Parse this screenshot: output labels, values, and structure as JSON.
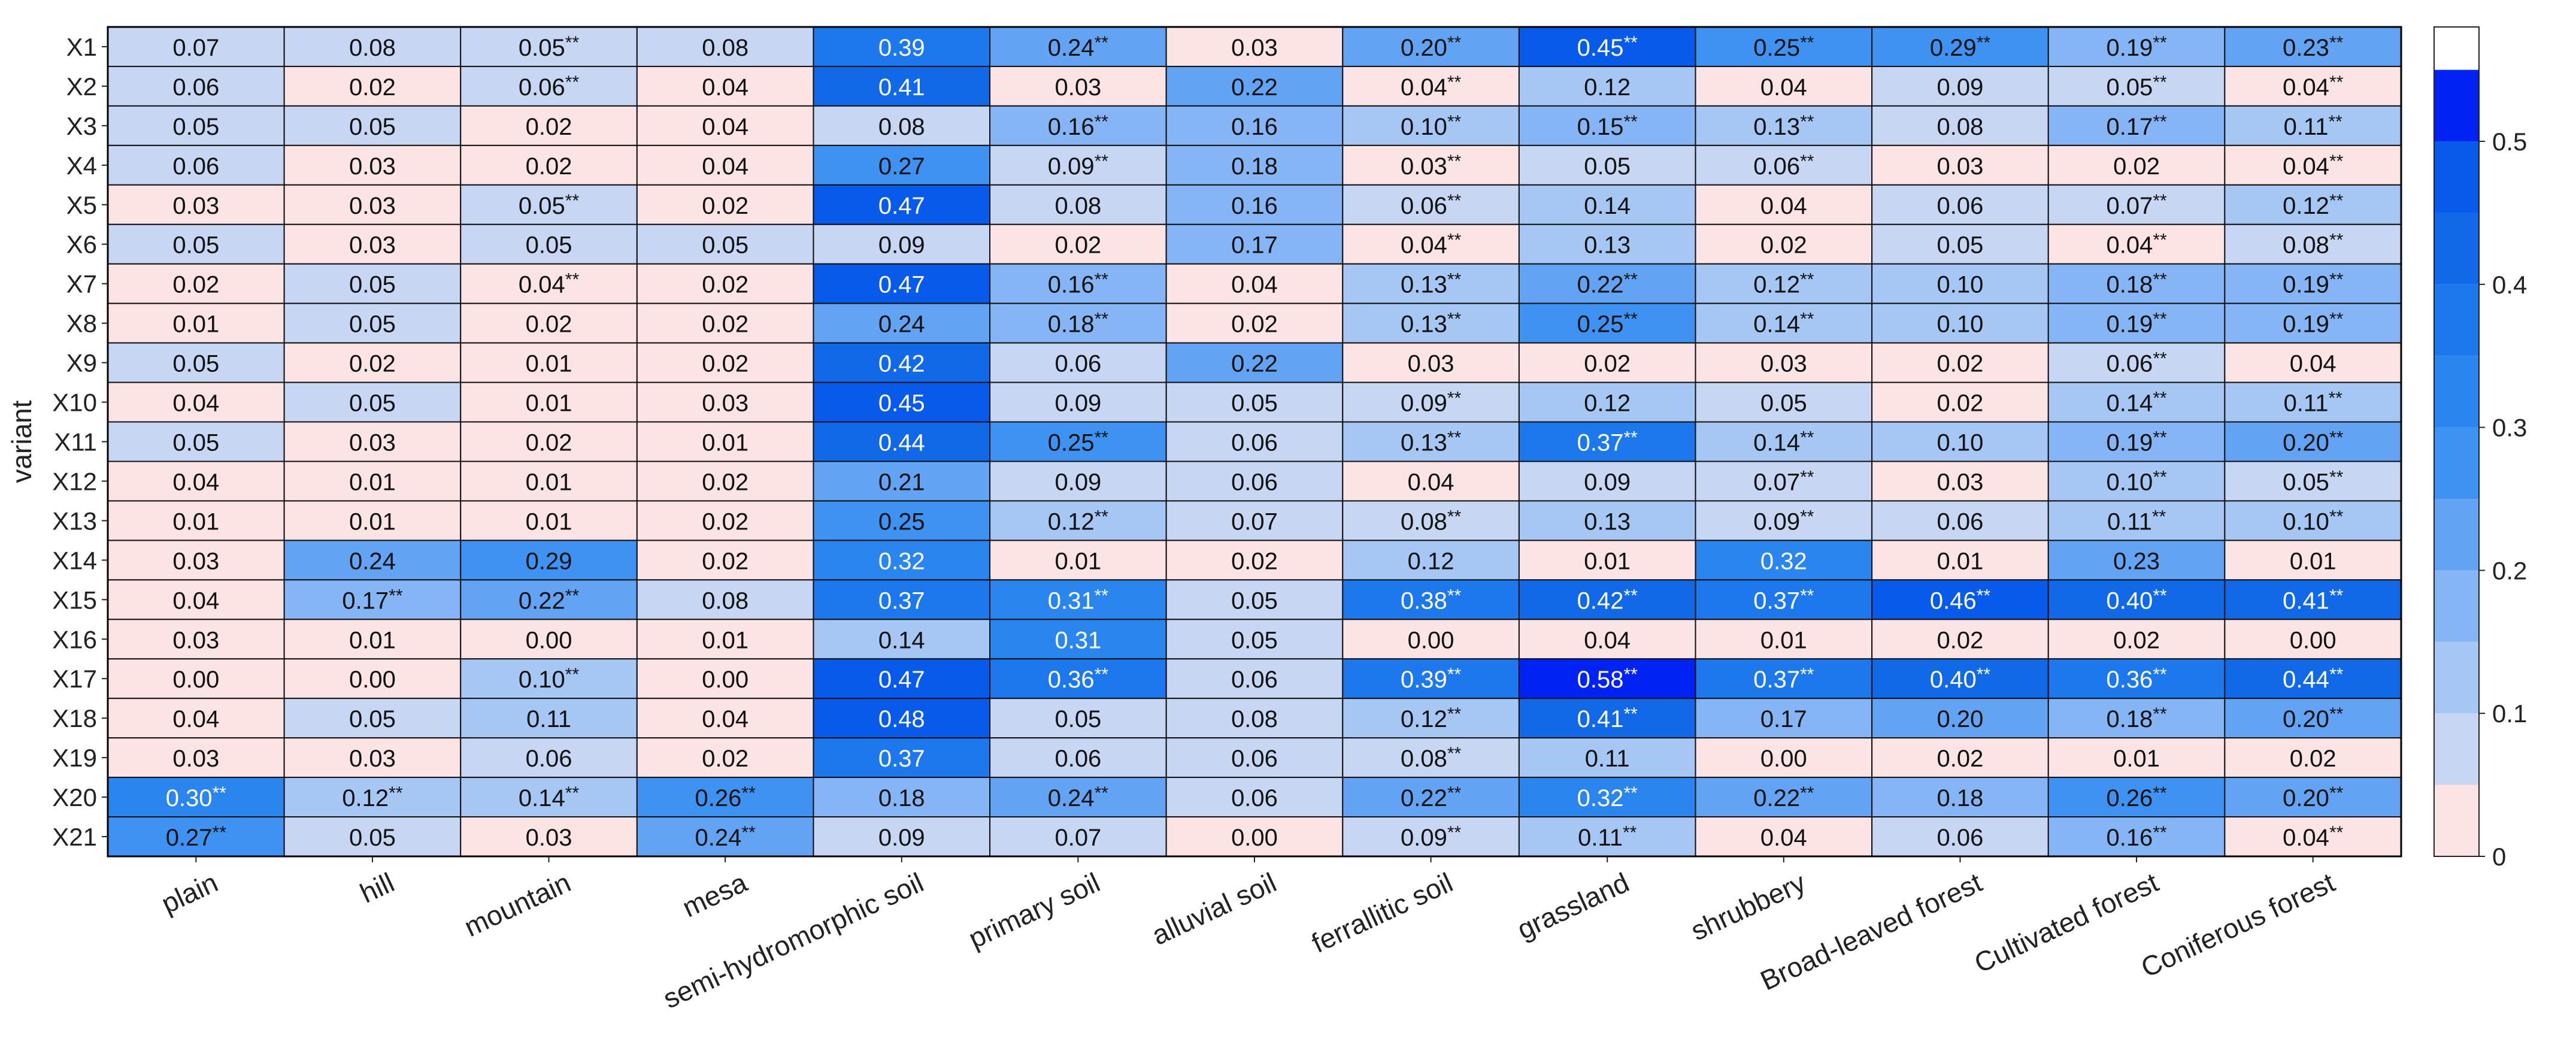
{
  "chart_data": {
    "type": "heatmap",
    "title": "",
    "xlabel": "",
    "ylabel": "variant",
    "rows": [
      "X1",
      "X2",
      "X3",
      "X4",
      "X5",
      "X6",
      "X7",
      "X8",
      "X9",
      "X10",
      "X11",
      "X12",
      "X13",
      "X14",
      "X15",
      "X16",
      "X17",
      "X18",
      "X19",
      "X20",
      "X21"
    ],
    "columns": [
      "plain",
      "hill",
      "mountain",
      "mesa",
      "semi-hydromorphic soil",
      "primary soil",
      "alluvial soil",
      "ferrallitic soil",
      "grassland",
      "shrubbery",
      "Broad-leaved forest",
      "Cultivated forest",
      "Coniferous forest"
    ],
    "values": [
      [
        0.07,
        0.08,
        0.05,
        0.08,
        0.39,
        0.24,
        0.03,
        0.2,
        0.45,
        0.25,
        0.29,
        0.19,
        0.23
      ],
      [
        0.06,
        0.02,
        0.06,
        0.04,
        0.41,
        0.03,
        0.22,
        0.04,
        0.12,
        0.04,
        0.09,
        0.05,
        0.04
      ],
      [
        0.05,
        0.05,
        0.02,
        0.04,
        0.08,
        0.16,
        0.16,
        0.1,
        0.15,
        0.13,
        0.08,
        0.17,
        0.11
      ],
      [
        0.06,
        0.03,
        0.02,
        0.04,
        0.27,
        0.09,
        0.18,
        0.03,
        0.05,
        0.06,
        0.03,
        0.02,
        0.04
      ],
      [
        0.03,
        0.03,
        0.05,
        0.02,
        0.47,
        0.08,
        0.16,
        0.06,
        0.14,
        0.04,
        0.06,
        0.07,
        0.12
      ],
      [
        0.05,
        0.03,
        0.05,
        0.05,
        0.09,
        0.02,
        0.17,
        0.04,
        0.13,
        0.02,
        0.05,
        0.04,
        0.08
      ],
      [
        0.02,
        0.05,
        0.04,
        0.02,
        0.47,
        0.16,
        0.04,
        0.13,
        0.22,
        0.12,
        0.1,
        0.18,
        0.19
      ],
      [
        0.01,
        0.05,
        0.02,
        0.02,
        0.24,
        0.18,
        0.02,
        0.13,
        0.25,
        0.14,
        0.1,
        0.19,
        0.19
      ],
      [
        0.05,
        0.02,
        0.01,
        0.02,
        0.42,
        0.06,
        0.22,
        0.03,
        0.02,
        0.03,
        0.02,
        0.06,
        0.04
      ],
      [
        0.04,
        0.05,
        0.01,
        0.03,
        0.45,
        0.09,
        0.05,
        0.09,
        0.12,
        0.05,
        0.02,
        0.14,
        0.11
      ],
      [
        0.05,
        0.03,
        0.02,
        0.01,
        0.44,
        0.25,
        0.06,
        0.13,
        0.37,
        0.14,
        0.1,
        0.19,
        0.2
      ],
      [
        0.04,
        0.01,
        0.01,
        0.02,
        0.21,
        0.09,
        0.06,
        0.04,
        0.09,
        0.07,
        0.03,
        0.1,
        0.05
      ],
      [
        0.01,
        0.01,
        0.01,
        0.02,
        0.25,
        0.12,
        0.07,
        0.08,
        0.13,
        0.09,
        0.06,
        0.11,
        0.1
      ],
      [
        0.03,
        0.24,
        0.29,
        0.02,
        0.32,
        0.01,
        0.02,
        0.12,
        0.01,
        0.32,
        0.01,
        0.23,
        0.01
      ],
      [
        0.04,
        0.17,
        0.22,
        0.08,
        0.37,
        0.31,
        0.05,
        0.38,
        0.42,
        0.37,
        0.46,
        0.4,
        0.41
      ],
      [
        0.03,
        0.01,
        0.0,
        0.01,
        0.14,
        0.31,
        0.05,
        0.0,
        0.04,
        0.01,
        0.02,
        0.02,
        0.0
      ],
      [
        0.0,
        0.0,
        0.1,
        0.0,
        0.47,
        0.36,
        0.06,
        0.39,
        0.58,
        0.37,
        0.4,
        0.36,
        0.44
      ],
      [
        0.04,
        0.05,
        0.11,
        0.04,
        0.48,
        0.05,
        0.08,
        0.12,
        0.41,
        0.17,
        0.2,
        0.18,
        0.2
      ],
      [
        0.03,
        0.03,
        0.06,
        0.02,
        0.37,
        0.06,
        0.06,
        0.08,
        0.11,
        0.0,
        0.02,
        0.01,
        0.02
      ],
      [
        0.3,
        0.12,
        0.14,
        0.26,
        0.18,
        0.24,
        0.06,
        0.22,
        0.32,
        0.22,
        0.18,
        0.26,
        0.2
      ],
      [
        0.27,
        0.05,
        0.03,
        0.24,
        0.09,
        0.07,
        0.0,
        0.09,
        0.11,
        0.04,
        0.06,
        0.16,
        0.04
      ]
    ],
    "significance": [
      [
        "",
        "",
        "**",
        "",
        "",
        "**",
        "",
        "**",
        "**",
        "**",
        "**",
        "**",
        "**"
      ],
      [
        "",
        "",
        "**",
        "",
        "",
        "",
        "",
        "**",
        "",
        "",
        "",
        "**",
        "**"
      ],
      [
        "",
        "",
        "",
        "",
        "",
        "**",
        "",
        "**",
        "**",
        "**",
        "",
        "**",
        "**"
      ],
      [
        "",
        "",
        "",
        "",
        "",
        "**",
        "",
        "**",
        "",
        "**",
        "",
        "",
        "**"
      ],
      [
        "",
        "",
        "**",
        "",
        "",
        "",
        "",
        "**",
        "",
        "",
        "",
        "**",
        "**"
      ],
      [
        "",
        "",
        "",
        "",
        "",
        "",
        "",
        "**",
        "",
        "",
        "",
        "**",
        "**"
      ],
      [
        "",
        "",
        "**",
        "",
        "",
        "**",
        "",
        "**",
        "**",
        "**",
        "",
        "**",
        "**"
      ],
      [
        "",
        "",
        "",
        "",
        "",
        "**",
        "",
        "**",
        "**",
        "**",
        "",
        "**",
        "**"
      ],
      [
        "",
        "",
        "",
        "",
        "",
        "",
        "",
        "",
        "",
        "",
        "",
        "**",
        ""
      ],
      [
        "",
        "",
        "",
        "",
        "",
        "",
        "",
        "**",
        "",
        "",
        "",
        "**",
        "**"
      ],
      [
        "",
        "",
        "",
        "",
        "",
        "**",
        "",
        "**",
        "**",
        "**",
        "",
        "**",
        "**"
      ],
      [
        "",
        "",
        "",
        "",
        "",
        "",
        "",
        "",
        "",
        "**",
        "",
        "**",
        "**"
      ],
      [
        "",
        "",
        "",
        "",
        "",
        "**",
        "",
        "**",
        "",
        "**",
        "",
        "**",
        "**"
      ],
      [
        "",
        "",
        "",
        "",
        "",
        "",
        "",
        "",
        "",
        "",
        "",
        "",
        ""
      ],
      [
        "",
        "**",
        "**",
        "",
        "",
        "**",
        "",
        "**",
        "**",
        "**",
        "**",
        "**",
        "**"
      ],
      [
        "",
        "",
        "",
        "",
        "",
        "",
        "",
        "",
        "",
        "",
        "",
        "",
        ""
      ],
      [
        "",
        "",
        "**",
        "",
        "",
        "**",
        "",
        "**",
        "**",
        "**",
        "**",
        "**",
        "**"
      ],
      [
        "",
        "",
        "",
        "",
        "",
        "",
        "",
        "**",
        "**",
        "",
        "",
        "**",
        "**"
      ],
      [
        "",
        "",
        "",
        "",
        "",
        "",
        "",
        "**",
        "",
        "",
        "",
        "",
        ""
      ],
      [
        "**",
        "**",
        "**",
        "**",
        "",
        "**",
        "",
        "**",
        "**",
        "**",
        "",
        "**",
        "**"
      ],
      [
        "**",
        "",
        "",
        "**",
        "",
        "",
        "",
        "**",
        "**",
        "",
        "",
        "**",
        "**"
      ]
    ],
    "colorbar": {
      "range": [
        0,
        0.58
      ],
      "ticks": [
        0,
        0.1,
        0.2,
        0.3,
        0.4,
        0.5
      ],
      "tick_labels": [
        "0",
        "0.1",
        "0.2",
        "0.3",
        "0.4",
        "0.5"
      ],
      "step": 0.05,
      "colors": [
        "#fde4e4",
        "#c6d6f3",
        "#a6c6f4",
        "#85b5f4",
        "#63a3f3",
        "#3e92f1",
        "#2a86ee",
        "#1c78ec",
        "#1169e8",
        "#075aea",
        "#0022f2"
      ]
    }
  }
}
